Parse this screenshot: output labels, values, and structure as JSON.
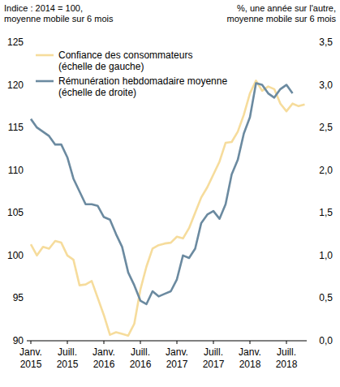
{
  "chart_data": {
    "type": "line",
    "y_label": [
      "Indice : 2014 = 100,",
      "moyenne mobile sur 6 mois"
    ],
    "y2_label": [
      "%, une année sur l'autre,",
      "moyenne mobile sur 6 mois"
    ],
    "categories": [
      "Janv. 2015",
      null,
      null,
      null,
      null,
      null,
      "Juill. 2015",
      null,
      null,
      null,
      null,
      null,
      "Janv. 2016",
      null,
      null,
      null,
      null,
      null,
      "Juill. 2016",
      null,
      null,
      null,
      null,
      null,
      "Janv. 2017",
      null,
      null,
      null,
      null,
      null,
      "Juill. 2017",
      null,
      null,
      null,
      null,
      null,
      "Janv. 2018",
      null,
      null,
      null,
      null,
      null,
      "Juill. 2018",
      null,
      null,
      null
    ],
    "series": [
      {
        "name": "Confiance des consommateurs (échelle de gauche)",
        "color": "#f6dc9c",
        "axis": "y",
        "values": [
          101.3,
          100.0,
          101.0,
          100.8,
          101.7,
          101.5,
          100.0,
          99.5,
          96.5,
          96.6,
          97.0,
          95.0,
          93.0,
          90.7,
          91.0,
          90.8,
          90.6,
          92.0,
          96.0,
          98.7,
          100.8,
          101.2,
          101.4,
          101.5,
          102.2,
          102.0,
          103.2,
          105.0,
          106.8,
          108.0,
          109.5,
          111.0,
          113.2,
          113.3,
          114.5,
          116.5,
          119.0,
          120.5,
          119.3,
          119.8,
          119.5,
          117.8,
          116.9,
          117.8,
          117.5,
          117.7
        ]
      },
      {
        "name": "Rémunération hebdomadaire moyenne (échelle de droite)",
        "color": "#6b8aa0",
        "axis": "y2",
        "values": [
          2.6,
          2.5,
          2.45,
          2.4,
          2.3,
          2.3,
          2.15,
          1.9,
          1.75,
          1.6,
          1.6,
          1.58,
          1.45,
          1.42,
          1.25,
          1.1,
          0.8,
          0.65,
          0.47,
          0.43,
          0.58,
          0.52,
          0.55,
          0.58,
          0.72,
          1.0,
          0.97,
          1.08,
          1.38,
          1.48,
          1.52,
          1.43,
          1.6,
          1.95,
          2.12,
          2.43,
          2.62,
          3.02,
          3.0,
          2.9,
          2.85,
          2.95,
          3.0,
          2.9,
          null,
          null
        ]
      }
    ],
    "ylim": [
      90,
      125
    ],
    "yticks": [
      90,
      95,
      100,
      105,
      110,
      115,
      120,
      125
    ],
    "y2lim": [
      0,
      3.5
    ],
    "y2ticks": [
      {
        "value": 0,
        "label": "0,0"
      },
      {
        "value": 0.5,
        "label": "0,5"
      },
      {
        "value": 1,
        "label": "1,0"
      },
      {
        "value": 1.5,
        "label": "1,5"
      },
      {
        "value": 2,
        "label": "2,0"
      },
      {
        "value": 2.5,
        "label": "2,5"
      },
      {
        "value": 3,
        "label": "3,0"
      },
      {
        "value": 3.5,
        "label": "3,5"
      }
    ],
    "grid": false,
    "legend": "top-left"
  }
}
